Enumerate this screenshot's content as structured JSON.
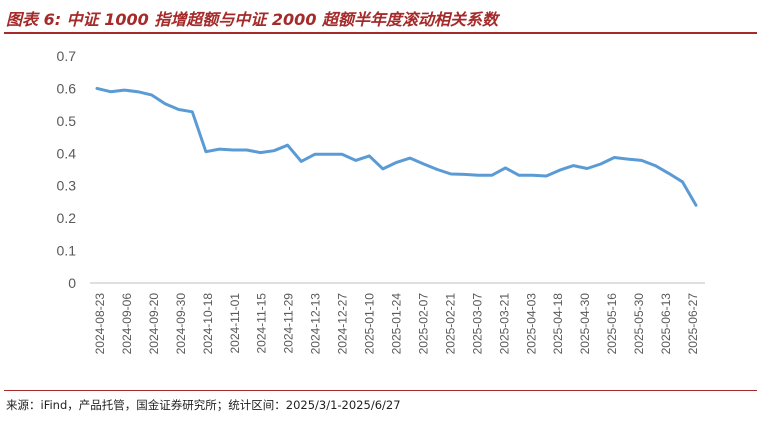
{
  "header": {
    "title": "图表 6: 中证 1000 指增超额与中证 2000 超额半年度滚动相关系数"
  },
  "footer": {
    "source": "来源：iFind，产品托管，国金证券研究所；统计区间：2025/3/1-2025/6/27"
  },
  "colors": {
    "accent": "#a52a2a",
    "line": "#5b9bd5",
    "axis": "#bfbfbf",
    "tick_text": "#595959"
  },
  "chart_data": {
    "type": "line",
    "title": "",
    "xlabel": "",
    "ylabel": "",
    "ylim": [
      0,
      0.7
    ],
    "yticks": [
      "0",
      "0.1",
      "0.2",
      "0.3",
      "0.4",
      "0.5",
      "0.6",
      "0.7"
    ],
    "grid": false,
    "legend": "none",
    "x_tick_labels": [
      "2024-08-23",
      "2024-09-06",
      "2024-09-20",
      "2024-09-30",
      "2024-10-18",
      "2024-11-01",
      "2024-11-15",
      "2024-11-29",
      "2024-12-13",
      "2024-12-27",
      "2025-01-10",
      "2025-01-24",
      "2025-02-07",
      "2025-02-21",
      "2025-03-07",
      "2025-03-21",
      "2025-04-03",
      "2025-04-18",
      "2025-04-30",
      "2025-05-16",
      "2025-05-30",
      "2025-06-13",
      "2025-06-27"
    ],
    "series": [
      {
        "values": [
          0.6,
          0.59,
          0.595,
          0.59,
          0.58,
          0.553,
          0.535,
          0.528,
          0.405,
          0.413,
          0.41,
          0.41,
          0.402,
          0.408,
          0.425,
          0.375,
          0.397,
          0.397,
          0.397,
          0.378,
          0.392,
          0.352,
          0.372,
          0.385,
          0.367,
          0.35,
          0.336,
          0.335,
          0.332,
          0.332,
          0.355,
          0.332,
          0.332,
          0.33,
          0.348,
          0.362,
          0.353,
          0.367,
          0.387,
          0.382,
          0.378,
          0.362,
          0.338,
          0.312,
          0.24
        ]
      }
    ]
  }
}
